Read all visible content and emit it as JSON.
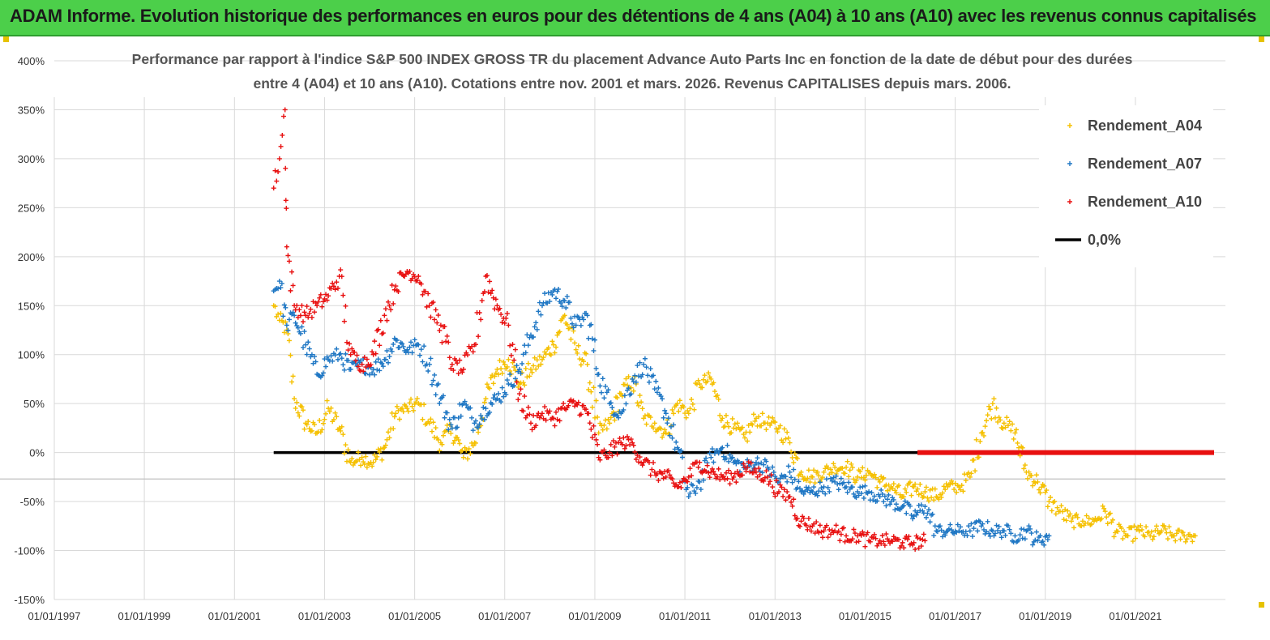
{
  "header": {
    "title": "ADAM Informe. Evolution historique des performances en euros pour des détentions de 4 ans (A04) à 10 ans (A10) avec les revenus connus capitalisés"
  },
  "chart_data": {
    "type": "scatter",
    "title_line1": "Performance par rapport à l'indice S&P 500 INDEX GROSS TR  du placement Advance Auto Parts Inc en fonction de la date de début pour des durées",
    "title_line2": "entre 4 (A04) et 10 ans (A10). Cotations entre nov. 2001 et mars. 2026. Revenus CAPITALISES depuis mars. 2006.",
    "xlabel": "",
    "ylabel": "",
    "xlim": [
      "1997-01-01",
      "2023-01-01"
    ],
    "ylim": [
      -150,
      400
    ],
    "y_ticks": [
      -150,
      -100,
      -50,
      0,
      50,
      100,
      150,
      200,
      250,
      300,
      350,
      400
    ],
    "y_tick_labels": [
      "-150%",
      "-100%",
      "-50%",
      "0%",
      "50%",
      "100%",
      "150%",
      "200%",
      "250%",
      "300%",
      "350%",
      "400%"
    ],
    "x_ticks": [
      "1997-01-01",
      "1999-01-01",
      "2001-01-01",
      "2003-01-01",
      "2005-01-01",
      "2007-01-01",
      "2009-01-01",
      "2011-01-01",
      "2013-01-01",
      "2015-01-01",
      "2017-01-01",
      "2019-01-01",
      "2021-01-01"
    ],
    "x_tick_labels": [
      "01/01/1997",
      "01/01/1999",
      "01/01/2001",
      "01/01/2003",
      "01/01/2005",
      "01/01/2007",
      "01/01/2009",
      "01/01/2011",
      "01/01/2013",
      "01/01/2015",
      "01/01/2017",
      "01/01/2019",
      "01/01/2021"
    ],
    "grid": true,
    "legend_position": "top-right",
    "series": [
      {
        "name": "Rendement_A04",
        "color": "#f5c000",
        "marker": "plus",
        "x": [
          "2001-11-15",
          "2002-01-01",
          "2002-03-01",
          "2002-05-01",
          "2002-08-01",
          "2002-11-01",
          "2003-02-01",
          "2003-05-01",
          "2003-08-01",
          "2003-11-01",
          "2004-02-01",
          "2004-05-01",
          "2004-08-01",
          "2004-11-01",
          "2005-02-01",
          "2005-05-01",
          "2005-08-01",
          "2005-11-01",
          "2006-02-01",
          "2006-05-01",
          "2006-08-01",
          "2006-11-01",
          "2007-02-01",
          "2007-05-01",
          "2007-08-01",
          "2007-11-01",
          "2008-02-01",
          "2008-05-01",
          "2008-08-01",
          "2008-11-01",
          "2009-02-01",
          "2009-05-01",
          "2009-08-01",
          "2009-11-01",
          "2010-02-01",
          "2010-05-01",
          "2010-08-01",
          "2010-11-01",
          "2011-02-01",
          "2011-05-01",
          "2011-08-01",
          "2011-11-01",
          "2012-02-01",
          "2012-05-01",
          "2012-08-01",
          "2012-11-01",
          "2013-02-01",
          "2013-05-01",
          "2013-08-01",
          "2013-11-01",
          "2014-02-01",
          "2014-05-01",
          "2014-08-01",
          "2014-11-01",
          "2015-02-01",
          "2015-05-01",
          "2015-08-01",
          "2015-11-01",
          "2016-02-01",
          "2016-05-01",
          "2016-08-01",
          "2016-11-01",
          "2017-02-01",
          "2017-05-01",
          "2017-08-01",
          "2017-11-01",
          "2018-02-01",
          "2018-05-01",
          "2018-08-01",
          "2018-11-01",
          "2019-02-01",
          "2019-05-01",
          "2019-08-01",
          "2019-11-01",
          "2020-02-01",
          "2020-05-01",
          "2020-08-01",
          "2020-11-01",
          "2021-02-01",
          "2021-05-01",
          "2021-08-01",
          "2021-11-01",
          "2022-02-01",
          "2022-05-01"
        ],
        "y": [
          150,
          135,
          125,
          55,
          30,
          20,
          45,
          25,
          -10,
          -5,
          -10,
          5,
          40,
          45,
          50,
          30,
          10,
          25,
          -5,
          10,
          55,
          85,
          95,
          70,
          85,
          95,
          110,
          140,
          105,
          90,
          20,
          30,
          60,
          75,
          35,
          30,
          20,
          50,
          40,
          70,
          75,
          35,
          25,
          15,
          35,
          30,
          25,
          10,
          -20,
          -25,
          -20,
          -15,
          -15,
          -25,
          -20,
          -30,
          -35,
          -45,
          -35,
          -40,
          -45,
          -35,
          -35,
          -25,
          20,
          50,
          30,
          20,
          -20,
          -30,
          -50,
          -60,
          -70,
          -70,
          -70,
          -60,
          -80,
          -85,
          -80,
          -85,
          -80,
          -85,
          -85,
          -85
        ]
      },
      {
        "name": "Rendement_A07",
        "color": "#1f77c4",
        "marker": "plus",
        "x": [
          "2001-11-15",
          "2002-01-01",
          "2002-03-01",
          "2002-05-01",
          "2002-08-01",
          "2002-11-01",
          "2003-02-01",
          "2003-05-01",
          "2003-08-01",
          "2003-11-01",
          "2004-02-01",
          "2004-05-01",
          "2004-08-01",
          "2004-11-01",
          "2005-02-01",
          "2005-05-01",
          "2005-08-01",
          "2005-11-01",
          "2006-02-01",
          "2006-05-01",
          "2006-08-01",
          "2006-11-01",
          "2007-02-01",
          "2007-05-01",
          "2007-08-01",
          "2007-11-01",
          "2008-02-01",
          "2008-05-01",
          "2008-08-01",
          "2008-11-01",
          "2009-02-01",
          "2009-05-01",
          "2009-08-01",
          "2009-11-01",
          "2010-02-01",
          "2010-05-01",
          "2010-08-01",
          "2010-11-01",
          "2011-02-01",
          "2011-05-01",
          "2011-08-01",
          "2011-11-01",
          "2012-02-01",
          "2012-05-01",
          "2012-08-01",
          "2012-11-01",
          "2013-02-01",
          "2013-05-01",
          "2013-08-01",
          "2013-11-01",
          "2014-02-01",
          "2014-05-01",
          "2014-08-01",
          "2014-11-01",
          "2015-02-01",
          "2015-05-01",
          "2015-08-01",
          "2015-11-01",
          "2016-02-01",
          "2016-05-01",
          "2016-08-01",
          "2016-11-01",
          "2017-02-01",
          "2017-05-01",
          "2017-08-01",
          "2017-11-01",
          "2018-02-01",
          "2018-05-01",
          "2018-08-01",
          "2018-11-01",
          "2019-02-01"
        ],
        "y": [
          165,
          175,
          130,
          140,
          110,
          80,
          95,
          100,
          85,
          90,
          85,
          95,
          115,
          105,
          110,
          90,
          55,
          25,
          50,
          30,
          45,
          55,
          70,
          85,
          120,
          150,
          165,
          155,
          130,
          140,
          80,
          50,
          40,
          75,
          90,
          65,
          40,
          5,
          -45,
          -30,
          -5,
          5,
          -10,
          -15,
          -10,
          -15,
          -30,
          -20,
          -40,
          -40,
          -35,
          -30,
          -35,
          -40,
          -40,
          -45,
          -50,
          -55,
          -65,
          -55,
          -80,
          -80,
          -80,
          -80,
          -75,
          -80,
          -80,
          -85,
          -80,
          -90,
          -85
        ]
      },
      {
        "name": "Rendement_A10",
        "color": "#e81010",
        "marker": "plus",
        "x": [
          "2001-11-15",
          "2002-01-01",
          "2002-02-15",
          "2002-03-01",
          "2002-05-01",
          "2002-08-01",
          "2002-11-01",
          "2003-02-01",
          "2003-05-01",
          "2003-08-01",
          "2003-11-01",
          "2004-02-01",
          "2004-05-01",
          "2004-08-01",
          "2004-11-01",
          "2005-02-01",
          "2005-05-01",
          "2005-08-01",
          "2005-11-01",
          "2006-02-01",
          "2006-05-01",
          "2006-08-01",
          "2006-11-01",
          "2007-02-01",
          "2007-05-01",
          "2007-08-01",
          "2007-11-01",
          "2008-02-01",
          "2008-05-01",
          "2008-08-01",
          "2008-11-01",
          "2009-02-01",
          "2009-05-01",
          "2009-08-01",
          "2009-11-01",
          "2010-02-01",
          "2010-05-01",
          "2010-08-01",
          "2010-11-01",
          "2011-02-01",
          "2011-05-01",
          "2011-08-01",
          "2011-11-01",
          "2012-02-01",
          "2012-05-01",
          "2012-08-01",
          "2012-11-01",
          "2013-02-01",
          "2013-05-01",
          "2013-08-01",
          "2013-11-01",
          "2014-02-01",
          "2014-05-01",
          "2014-08-01",
          "2014-11-01",
          "2015-02-01",
          "2015-05-01",
          "2015-08-01",
          "2015-11-01",
          "2016-02-01",
          "2016-05-01"
        ],
        "y": [
          270,
          300,
          350,
          210,
          150,
          140,
          150,
          160,
          180,
          100,
          90,
          100,
          140,
          170,
          185,
          180,
          150,
          130,
          90,
          85,
          110,
          180,
          150,
          130,
          60,
          30,
          40,
          35,
          45,
          50,
          40,
          -5,
          0,
          10,
          10,
          -10,
          -20,
          -25,
          -35,
          -25,
          -10,
          -20,
          -25,
          -25,
          -15,
          -20,
          -25,
          -40,
          -45,
          -70,
          -75,
          -80,
          -80,
          -85,
          -85,
          -90,
          -90,
          -90,
          -92,
          -92,
          -90
        ]
      }
    ],
    "reference_line": {
      "name": "0,0%",
      "color": "#000000",
      "y": 0,
      "x_start": "2001-11-15",
      "x_end": "2016-03-01"
    },
    "reference_line_red": {
      "color": "#e81010",
      "y": 0,
      "x_start": "2016-03-01",
      "x_end": "2022-10-01"
    }
  }
}
